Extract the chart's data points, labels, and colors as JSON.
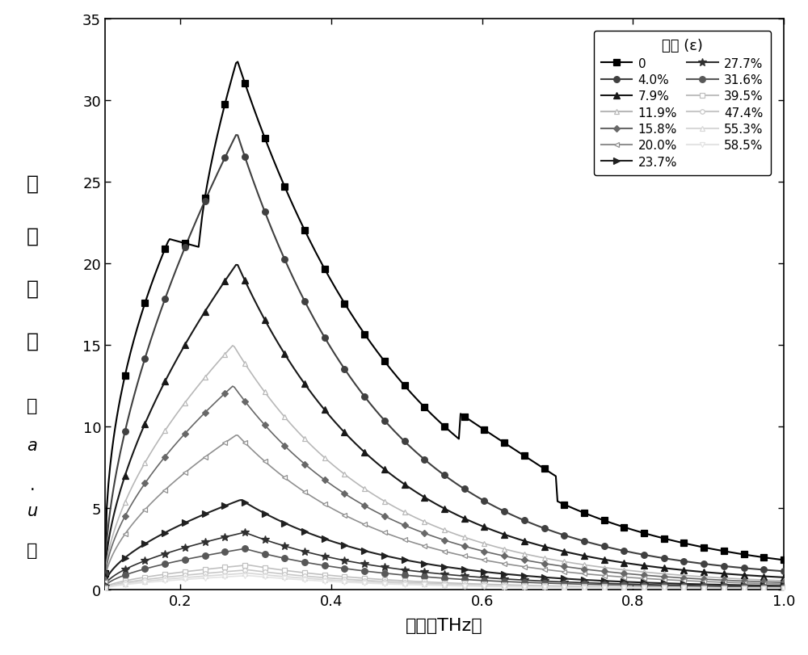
{
  "xlabel": "频率（THz）",
  "legend_title": "应变 (ε)",
  "ylabel_top": "透射",
  "ylabel_mid": "强度",
  "ylabel_bot": "（a.u）",
  "xlim": [
    0.1,
    1.0
  ],
  "ylim": [
    0,
    35
  ],
  "xticks": [
    0.2,
    0.4,
    0.6,
    0.8,
    1.0
  ],
  "yticks": [
    0,
    5,
    10,
    15,
    20,
    25,
    30,
    35
  ],
  "series": [
    {
      "label": "0",
      "color": "#000000",
      "marker": "s",
      "ms": 5.5,
      "filled": true
    },
    {
      "label": "4.0%",
      "color": "#404040",
      "marker": "o",
      "ms": 5.5,
      "filled": true
    },
    {
      "label": "7.9%",
      "color": "#181818",
      "marker": "^",
      "ms": 6.0,
      "filled": true
    },
    {
      "label": "11.9%",
      "color": "#b8b8b8",
      "marker": "^",
      "ms": 5.0,
      "filled": false
    },
    {
      "label": "15.8%",
      "color": "#686868",
      "marker": "D",
      "ms": 4.5,
      "filled": true
    },
    {
      "label": "20.0%",
      "color": "#909090",
      "marker": "<",
      "ms": 5.0,
      "filled": false
    },
    {
      "label": "23.7%",
      "color": "#202020",
      "marker": ">",
      "ms": 5.5,
      "filled": true
    },
    {
      "label": "27.7%",
      "color": "#303030",
      "marker": "*",
      "ms": 7.0,
      "filled": true
    },
    {
      "label": "31.6%",
      "color": "#585858",
      "marker": "o",
      "ms": 5.5,
      "filled": true
    },
    {
      "label": "39.5%",
      "color": "#c0c0c0",
      "marker": "s",
      "ms": 4.0,
      "filled": false
    },
    {
      "label": "47.4%",
      "color": "#c8c8c8",
      "marker": "o",
      "ms": 4.0,
      "filled": false
    },
    {
      "label": "55.3%",
      "color": "#d8d8d8",
      "marker": "^",
      "ms": 4.0,
      "filled": false
    },
    {
      "label": "58.5%",
      "color": "#e4e4e4",
      "marker": "v",
      "ms": 4.0,
      "filled": false
    }
  ],
  "peak_data": {
    "0": [
      32.5,
      0.275,
      1.0,
      0.5,
      true
    ],
    "4.0%": [
      28.0,
      0.275,
      1.0,
      0.5,
      false
    ],
    "7.9%": [
      20.0,
      0.275,
      0.8,
      0.3,
      false
    ],
    "11.9%": [
      15.0,
      0.27,
      0.65,
      0.2,
      false
    ],
    "15.8%": [
      12.5,
      0.27,
      0.6,
      0.15,
      false
    ],
    "20.0%": [
      9.5,
      0.275,
      0.5,
      0.12,
      false
    ],
    "23.7%": [
      5.5,
      0.28,
      0.3,
      0.1,
      false
    ],
    "27.7%": [
      3.5,
      0.285,
      0.2,
      0.1,
      false
    ],
    "31.6%": [
      2.5,
      0.285,
      0.15,
      0.1,
      false
    ],
    "39.5%": [
      1.5,
      0.29,
      0.1,
      0.05,
      false
    ],
    "47.4%": [
      1.2,
      0.29,
      0.08,
      0.05,
      false
    ],
    "55.3%": [
      1.0,
      0.29,
      0.07,
      0.05,
      false
    ],
    "58.5%": [
      0.85,
      0.29,
      0.05,
      0.03,
      false
    ]
  }
}
